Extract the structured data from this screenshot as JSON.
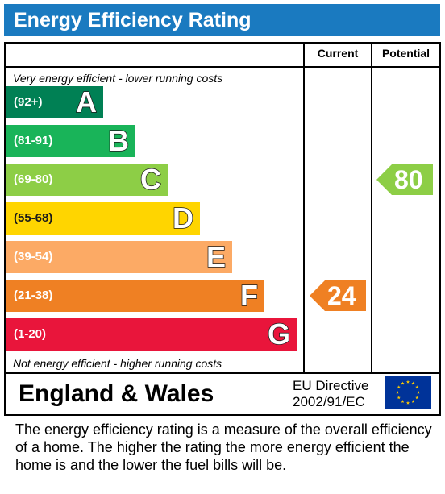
{
  "title": "Energy Efficiency Rating",
  "columns": {
    "current": "Current",
    "potential": "Potential"
  },
  "top_note": "Very energy efficient - lower running costs",
  "bottom_note": "Not energy efficient - higher running costs",
  "chart_data": {
    "type": "bar",
    "bands": [
      {
        "letter": "A",
        "range": "(92+)",
        "color": "#008054"
      },
      {
        "letter": "B",
        "range": "(81-91)",
        "color": "#19b459"
      },
      {
        "letter": "C",
        "range": "(69-80)",
        "color": "#8dce46"
      },
      {
        "letter": "D",
        "range": "(55-68)",
        "color": "#ffd500"
      },
      {
        "letter": "E",
        "range": "(39-54)",
        "color": "#fcaa65"
      },
      {
        "letter": "F",
        "range": "(21-38)",
        "color": "#ef8023"
      },
      {
        "letter": "G",
        "range": "(1-20)",
        "color": "#e9153b"
      }
    ],
    "current": {
      "value": 24,
      "band": "F",
      "color": "#ef8023"
    },
    "potential": {
      "value": 80,
      "band": "C",
      "color": "#8dce46"
    }
  },
  "footer": {
    "region": "England & Wales",
    "directive_line1": "EU Directive",
    "directive_line2": "2002/91/EC",
    "flag_icon": "eu-flag-icon"
  },
  "description": "The energy efficiency rating is a measure of the overall efficiency of a home.  The higher the rating the more energy efficient the home is and the lower the fuel bills will be."
}
